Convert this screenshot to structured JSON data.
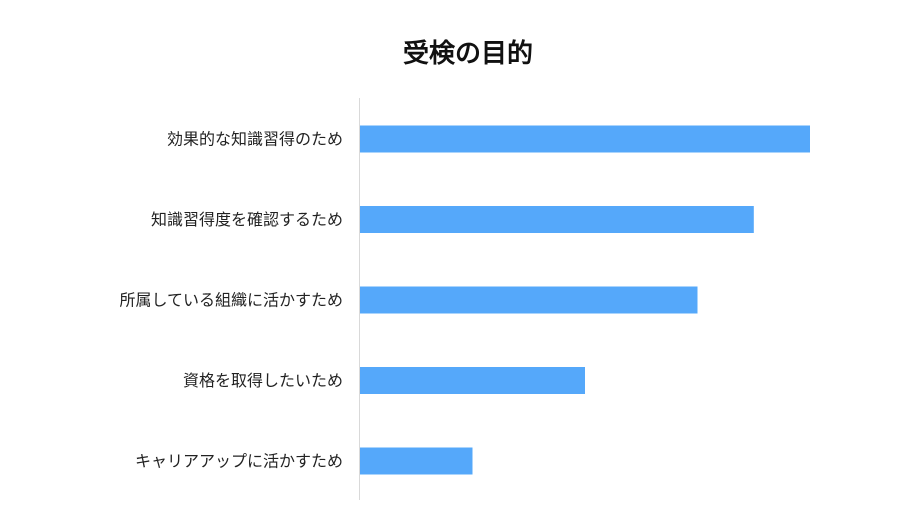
{
  "chart_data": {
    "type": "bar",
    "orientation": "horizontal",
    "title": "受検の目的",
    "xlabel": "",
    "ylabel": "",
    "categories": [
      "効果的な知識習得のため",
      "知識習得度を確認するため",
      "所属している組織に活かすため",
      "資格を取得したいため",
      "キャリアアップに活かすため"
    ],
    "values": [
      100,
      87.5,
      75,
      50,
      25
    ],
    "xlim": [
      0,
      100
    ],
    "grid": false,
    "legend": "none",
    "bar_color": "#55A8FA"
  }
}
